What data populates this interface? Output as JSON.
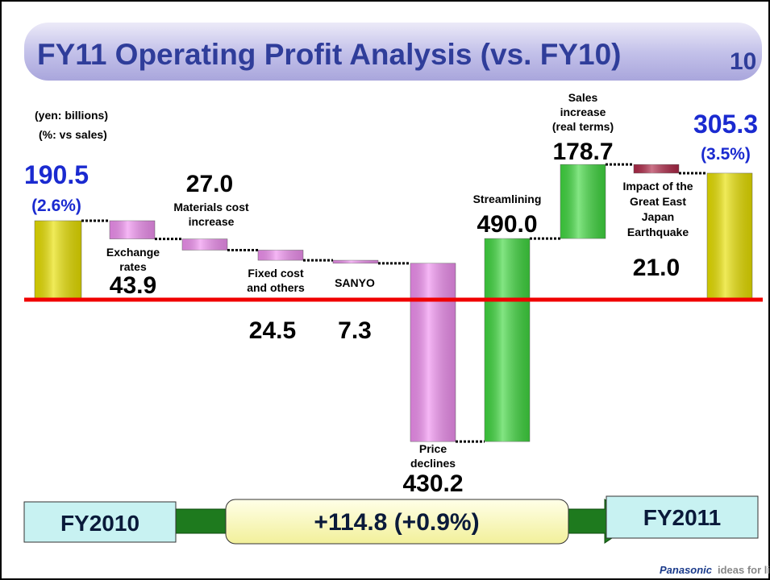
{
  "chart_data": {
    "type": "waterfall",
    "title": "FY11 Operating Profit Analysis (vs. FY10)",
    "page_number": "10",
    "unit_notes": [
      "(yen: billions)",
      "(%: vs sales)"
    ],
    "categories": [
      [
        "FY2010"
      ],
      [
        "Exchange",
        "rates"
      ],
      [
        "Materials cost",
        "increase"
      ],
      [
        "Fixed cost",
        "and others"
      ],
      [
        "SANYO"
      ],
      [
        "Price",
        "declines"
      ],
      [
        "Streamlining"
      ],
      [
        "Sales",
        "increase",
        "(real terms)"
      ],
      [
        "Impact of the",
        "Great East",
        "Japan",
        "Earthquake"
      ],
      [
        "FY2011"
      ]
    ],
    "measure": [
      "absolute",
      "relative",
      "relative",
      "relative",
      "relative",
      "relative",
      "relative",
      "relative",
      "relative",
      "absolute"
    ],
    "values": [
      190.5,
      -43.9,
      -27.0,
      -24.5,
      -7.3,
      -430.2,
      490.0,
      178.7,
      -21.0,
      305.3
    ],
    "value_labels": [
      "190.5",
      "43.9",
      "27.0",
      "24.5",
      "7.3",
      "430.2",
      "490.0",
      "178.7",
      "21.0",
      "305.3"
    ],
    "ratio_labels": [
      "(2.6%)",
      null,
      null,
      null,
      null,
      null,
      null,
      null,
      null,
      "(3.5%)"
    ],
    "colors": [
      "#e8e000",
      "#f090f0",
      "#f090f0",
      "#f090f0",
      "#f090f0",
      "#f090f0",
      "#40d840",
      "#40d840",
      "#b02848",
      "#e8e000"
    ],
    "change_label": "+114.8 (+0.9%)",
    "footer": {
      "brand": "Panasonic",
      "tagline": "ideas for life"
    }
  }
}
